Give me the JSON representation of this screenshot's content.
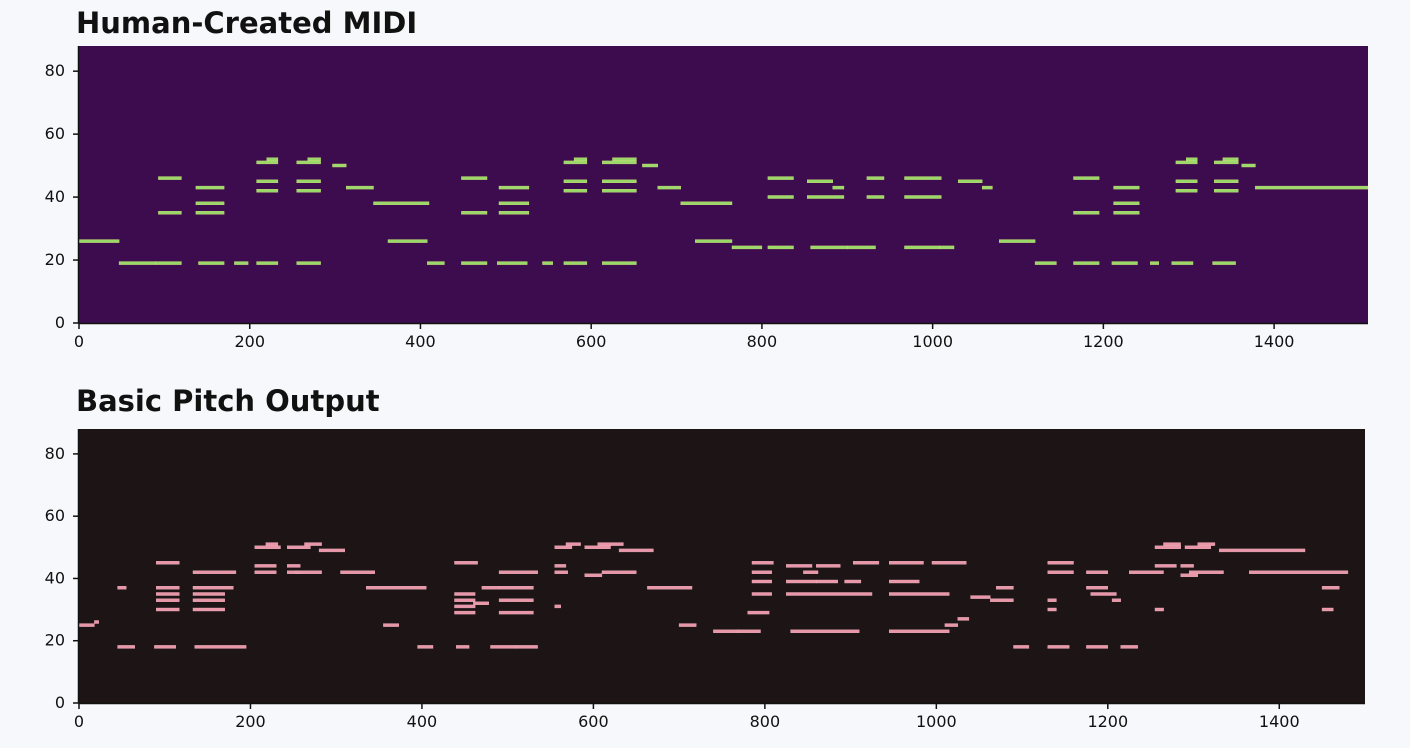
{
  "chart_data": [
    {
      "type": "heatmap",
      "title": "Human-Created MIDI",
      "xlim": [
        0,
        1510
      ],
      "ylim": [
        0,
        88
      ],
      "x_ticks": [
        0,
        200,
        400,
        600,
        800,
        1000,
        1200,
        1400
      ],
      "y_ticks": [
        0,
        20,
        40,
        60,
        80
      ],
      "colors": {
        "background": "#3d0c4f",
        "note": "#9ad86a",
        "note_edge": "#cfe978"
      },
      "notes": [
        [
          0,
          47,
          26
        ],
        [
          47,
          90,
          19
        ],
        [
          90,
          120,
          19
        ],
        [
          140,
          170,
          19
        ],
        [
          182,
          198,
          19
        ],
        [
          208,
          233,
          19
        ],
        [
          255,
          283,
          19
        ],
        [
          93,
          120,
          35
        ],
        [
          93,
          120,
          46
        ],
        [
          137,
          170,
          35
        ],
        [
          137,
          170,
          38
        ],
        [
          137,
          170,
          43
        ],
        [
          208,
          233,
          42
        ],
        [
          208,
          233,
          45
        ],
        [
          208,
          233,
          51
        ],
        [
          220,
          233,
          52
        ],
        [
          255,
          283,
          42
        ],
        [
          255,
          283,
          45
        ],
        [
          255,
          283,
          51
        ],
        [
          268,
          283,
          52
        ],
        [
          297,
          313,
          50
        ],
        [
          313,
          345,
          43
        ],
        [
          345,
          410,
          38
        ],
        [
          362,
          408,
          26
        ],
        [
          408,
          428,
          19
        ],
        [
          448,
          478,
          19
        ],
        [
          490,
          525,
          19
        ],
        [
          543,
          555,
          19
        ],
        [
          568,
          595,
          19
        ],
        [
          613,
          653,
          19
        ],
        [
          448,
          478,
          35
        ],
        [
          448,
          478,
          46
        ],
        [
          492,
          527,
          35
        ],
        [
          492,
          527,
          38
        ],
        [
          492,
          527,
          43
        ],
        [
          568,
          595,
          42
        ],
        [
          568,
          595,
          45
        ],
        [
          568,
          595,
          51
        ],
        [
          580,
          595,
          52
        ],
        [
          613,
          653,
          42
        ],
        [
          613,
          653,
          45
        ],
        [
          613,
          653,
          51
        ],
        [
          625,
          653,
          52
        ],
        [
          660,
          678,
          50
        ],
        [
          678,
          705,
          43
        ],
        [
          705,
          765,
          38
        ],
        [
          722,
          765,
          26
        ],
        [
          765,
          800,
          24
        ],
        [
          807,
          837,
          24
        ],
        [
          857,
          900,
          24
        ],
        [
          900,
          933,
          24
        ],
        [
          967,
          1008,
          24
        ],
        [
          1008,
          1025,
          24
        ],
        [
          807,
          837,
          40
        ],
        [
          807,
          837,
          46
        ],
        [
          853,
          896,
          40
        ],
        [
          853,
          883,
          45
        ],
        [
          883,
          896,
          43
        ],
        [
          923,
          943,
          40
        ],
        [
          923,
          943,
          46
        ],
        [
          967,
          1010,
          40
        ],
        [
          967,
          1010,
          46
        ],
        [
          1030,
          1058,
          45
        ],
        [
          1058,
          1070,
          43
        ],
        [
          1078,
          1120,
          26
        ],
        [
          1120,
          1145,
          19
        ],
        [
          1165,
          1195,
          19
        ],
        [
          1210,
          1240,
          19
        ],
        [
          1255,
          1265,
          19
        ],
        [
          1280,
          1305,
          19
        ],
        [
          1328,
          1355,
          19
        ],
        [
          1165,
          1195,
          35
        ],
        [
          1165,
          1195,
          46
        ],
        [
          1212,
          1242,
          35
        ],
        [
          1212,
          1242,
          38
        ],
        [
          1212,
          1242,
          43
        ],
        [
          1285,
          1310,
          42
        ],
        [
          1285,
          1310,
          45
        ],
        [
          1285,
          1310,
          51
        ],
        [
          1297,
          1310,
          52
        ],
        [
          1330,
          1358,
          42
        ],
        [
          1330,
          1358,
          45
        ],
        [
          1330,
          1358,
          51
        ],
        [
          1340,
          1358,
          52
        ],
        [
          1362,
          1378,
          50
        ],
        [
          1378,
          1510,
          43
        ]
      ]
    },
    {
      "type": "heatmap",
      "title": "Basic Pitch Output",
      "xlim": [
        0,
        1500
      ],
      "ylim": [
        0,
        88
      ],
      "x_ticks": [
        0,
        200,
        400,
        600,
        800,
        1000,
        1200,
        1400
      ],
      "y_ticks": [
        0,
        20,
        40,
        60,
        80
      ],
      "colors": {
        "background": "#1d1416",
        "note": "#e897a8",
        "note_edge": "#f2b0bf"
      },
      "notes": [
        [
          0,
          18,
          25
        ],
        [
          18,
          23,
          26
        ],
        [
          45,
          65,
          18
        ],
        [
          88,
          113,
          18
        ],
        [
          135,
          195,
          18
        ],
        [
          45,
          55,
          37
        ],
        [
          90,
          117,
          30
        ],
        [
          90,
          117,
          33
        ],
        [
          90,
          117,
          35
        ],
        [
          90,
          117,
          37
        ],
        [
          90,
          117,
          45
        ],
        [
          133,
          170,
          30
        ],
        [
          133,
          170,
          33
        ],
        [
          133,
          170,
          35
        ],
        [
          133,
          180,
          37
        ],
        [
          133,
          183,
          42
        ],
        [
          205,
          230,
          42
        ],
        [
          205,
          230,
          44
        ],
        [
          205,
          235,
          50
        ],
        [
          218,
          232,
          51
        ],
        [
          243,
          258,
          42
        ],
        [
          243,
          258,
          44
        ],
        [
          253,
          283,
          42
        ],
        [
          243,
          270,
          50
        ],
        [
          263,
          283,
          51
        ],
        [
          280,
          310,
          49
        ],
        [
          305,
          345,
          42
        ],
        [
          335,
          405,
          37
        ],
        [
          355,
          373,
          25
        ],
        [
          395,
          413,
          18
        ],
        [
          440,
          455,
          18
        ],
        [
          480,
          510,
          18
        ],
        [
          510,
          535,
          18
        ],
        [
          438,
          462,
          29
        ],
        [
          438,
          462,
          31
        ],
        [
          438,
          462,
          33
        ],
        [
          438,
          462,
          35
        ],
        [
          438,
          465,
          45
        ],
        [
          460,
          478,
          32
        ],
        [
          470,
          490,
          37
        ],
        [
          490,
          530,
          29
        ],
        [
          490,
          530,
          33
        ],
        [
          490,
          530,
          37
        ],
        [
          490,
          535,
          42
        ],
        [
          555,
          562,
          31
        ],
        [
          555,
          570,
          42
        ],
        [
          555,
          568,
          44
        ],
        [
          555,
          575,
          50
        ],
        [
          568,
          585,
          51
        ],
        [
          590,
          610,
          41
        ],
        [
          590,
          620,
          50
        ],
        [
          605,
          635,
          51
        ],
        [
          610,
          650,
          42
        ],
        [
          630,
          670,
          49
        ],
        [
          663,
          715,
          37
        ],
        [
          700,
          720,
          25
        ],
        [
          740,
          770,
          23
        ],
        [
          768,
          795,
          23
        ],
        [
          830,
          910,
          23
        ],
        [
          945,
          1015,
          23
        ],
        [
          1010,
          1025,
          25
        ],
        [
          1025,
          1038,
          27
        ],
        [
          1040,
          1063,
          34
        ],
        [
          1063,
          1090,
          33
        ],
        [
          780,
          805,
          29
        ],
        [
          785,
          808,
          35
        ],
        [
          785,
          808,
          39
        ],
        [
          785,
          808,
          42
        ],
        [
          785,
          810,
          45
        ],
        [
          825,
          925,
          35
        ],
        [
          825,
          860,
          39
        ],
        [
          860,
          885,
          39
        ],
        [
          825,
          855,
          44
        ],
        [
          845,
          862,
          42
        ],
        [
          860,
          888,
          44
        ],
        [
          893,
          912,
          39
        ],
        [
          903,
          933,
          45
        ],
        [
          945,
          1015,
          35
        ],
        [
          945,
          980,
          39
        ],
        [
          945,
          985,
          45
        ],
        [
          995,
          1035,
          45
        ],
        [
          1070,
          1090,
          37
        ],
        [
          1090,
          1108,
          18
        ],
        [
          1130,
          1155,
          18
        ],
        [
          1175,
          1200,
          18
        ],
        [
          1215,
          1235,
          18
        ],
        [
          1130,
          1160,
          45
        ],
        [
          1130,
          1160,
          42
        ],
        [
          1130,
          1140,
          33
        ],
        [
          1130,
          1140,
          30
        ],
        [
          1175,
          1200,
          42
        ],
        [
          1175,
          1200,
          37
        ],
        [
          1180,
          1210,
          35
        ],
        [
          1205,
          1215,
          33
        ],
        [
          1225,
          1265,
          42
        ],
        [
          1255,
          1265,
          30
        ],
        [
          1255,
          1285,
          50
        ],
        [
          1265,
          1285,
          51
        ],
        [
          1255,
          1280,
          44
        ],
        [
          1285,
          1305,
          41
        ],
        [
          1285,
          1300,
          44
        ],
        [
          1290,
          1320,
          50
        ],
        [
          1305,
          1325,
          51
        ],
        [
          1295,
          1335,
          42
        ],
        [
          1330,
          1430,
          49
        ],
        [
          1365,
          1480,
          42
        ],
        [
          1450,
          1470,
          37
        ],
        [
          1450,
          1463,
          30
        ]
      ]
    }
  ]
}
